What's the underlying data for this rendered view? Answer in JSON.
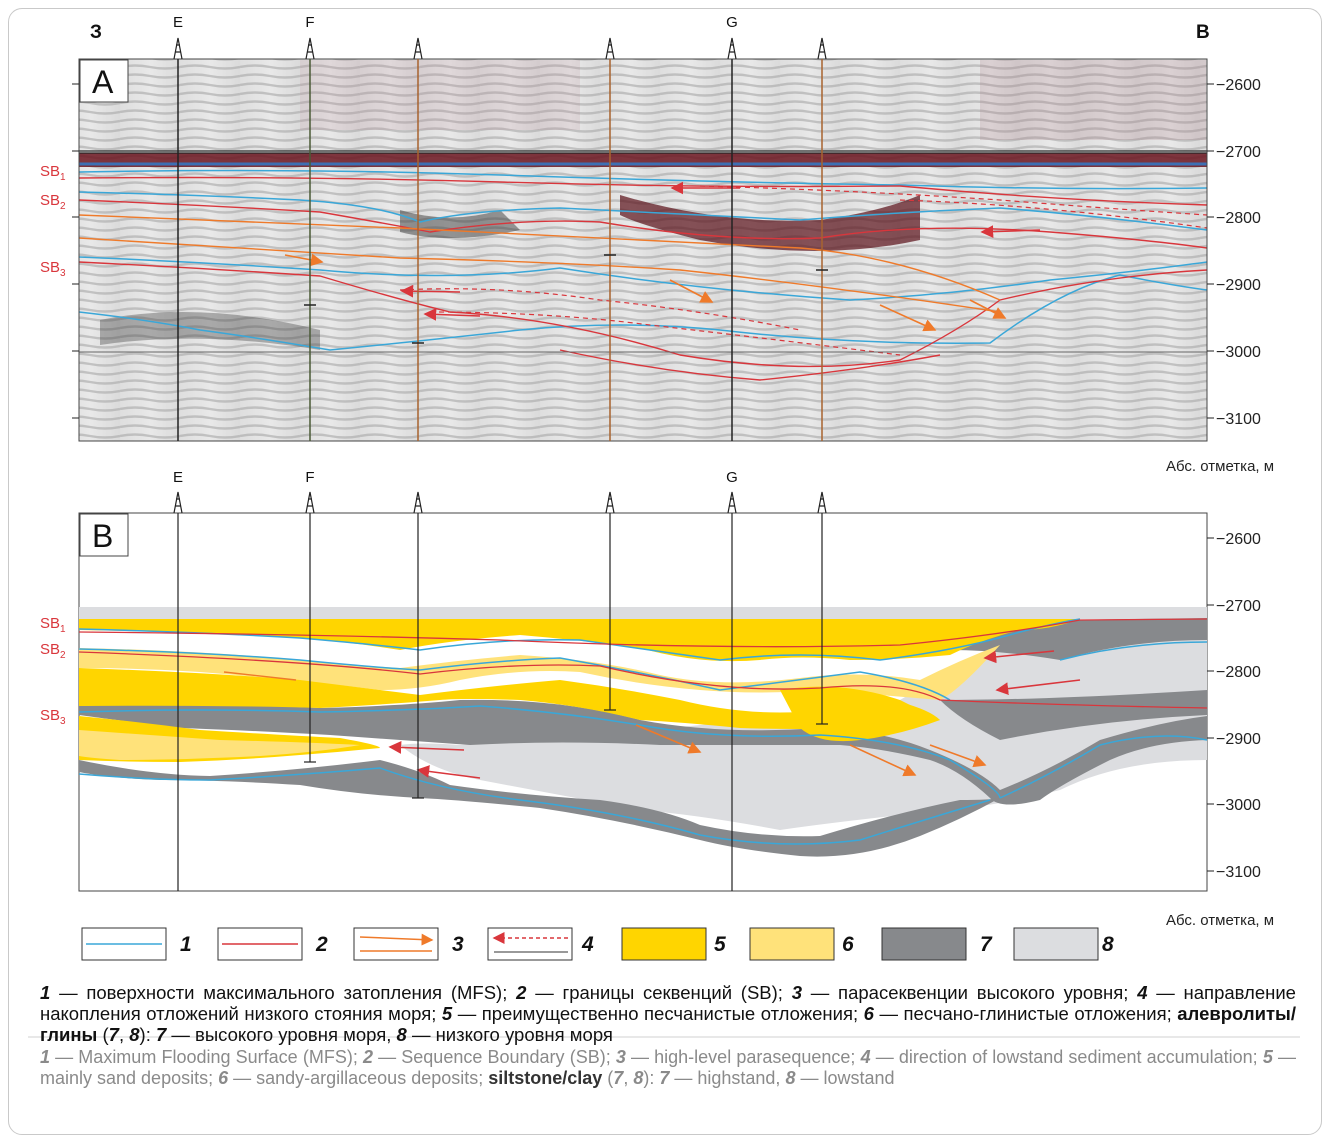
{
  "side_labels": {
    "west": "З",
    "east": "В"
  },
  "panels": [
    {
      "letter": "A",
      "type": "seismic section"
    },
    {
      "letter": "B",
      "type": "geological model"
    }
  ],
  "wells": {
    "labels_top": [
      "E",
      "F",
      "G"
    ],
    "labels_bottom": [
      "E",
      "F",
      "G"
    ]
  },
  "depth_axis": {
    "ticks": [
      "−2600",
      "−2700",
      "−2800",
      "−2900",
      "−3000",
      "−3100"
    ],
    "unit_label": "Абс. отметка, м"
  },
  "sequence_boundaries": {
    "sb1": "1",
    "sb2": "2",
    "sb3": "3",
    "prefix": "SB"
  },
  "legend": [
    {
      "num": "1",
      "kind": "line",
      "color": "#3aa7d8"
    },
    {
      "num": "2",
      "kind": "line",
      "color": "#d9363c"
    },
    {
      "num": "3",
      "kind": "arrows-solid",
      "color": "#ef7a2a"
    },
    {
      "num": "4",
      "kind": "arrows-dashed",
      "color": "#d9363c"
    },
    {
      "num": "5",
      "kind": "fill",
      "color": "#ffd500"
    },
    {
      "num": "6",
      "kind": "fill",
      "color": "#ffe27a"
    },
    {
      "num": "7",
      "kind": "fill",
      "color": "#87898c"
    },
    {
      "num": "8",
      "kind": "fill",
      "color": "#dcdde0"
    }
  ],
  "caption_ru": {
    "n1": "1",
    "t1": " — поверхности максимального затопления (MFS); ",
    "n2": "2",
    "t2": " — границы секвенций (SB); ",
    "n3": "3",
    "t3": " — парасеквенции высокого уровня; ",
    "n4": "4",
    "t4": " — направление накопления отложений низкого стояния моря; ",
    "n5": "5",
    "t5": " — преимущественно песчанистые отложения; ",
    "n6": "6",
    "t6": " — песчано-глинистые отложения; ",
    "bold": "алевролиты/глины",
    "p1": " (",
    "n7a": "7",
    "c": ", ",
    "n8a": "8",
    "p2": "): ",
    "n7": "7",
    "t7": " — высокого уровня моря, ",
    "n8": "8",
    "t8": " — низкого уровня моря"
  },
  "caption_en": {
    "n1": "1",
    "t1": " — Maximum Flooding Surface (MFS); ",
    "n2": "2",
    "t2": " — Sequence Boundary (SB); ",
    "n3": "3",
    "t3": " — high-level parasequence; ",
    "n4": "4",
    "t4": " — direction of lowstand sediment accumulation; ",
    "n5": "5",
    "t5": " — mainly sand deposits; ",
    "n6": "6",
    "t6": " — sandy-argillaceous deposits; ",
    "bold": "siltstone/clay",
    "p1": " (",
    "n7a": "7",
    "c": ", ",
    "n8a": "8",
    "p2": "): ",
    "n7": "7",
    "t7": " — highstand, ",
    "n8": "8",
    "t8": " — lowstand"
  }
}
